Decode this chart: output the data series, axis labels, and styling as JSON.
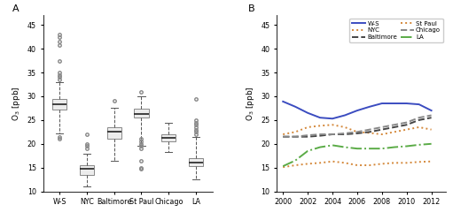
{
  "box_labels": [
    "W-S",
    "NYC",
    "Baltimore",
    "St Paul",
    "Chicago",
    "LA"
  ],
  "box_data": {
    "W-S": {
      "median": 28.3,
      "q1": 27.2,
      "q3": 29.5,
      "whislo": 22.2,
      "whishi": 33.0,
      "fliers": [
        21.5,
        21.0,
        33.5,
        34.0,
        34.5,
        35.0,
        37.5,
        40.8,
        41.5,
        42.5,
        43.0
      ]
    },
    "NYC": {
      "median": 14.8,
      "q1": 13.5,
      "q3": 15.5,
      "whislo": 11.0,
      "whishi": 18.0,
      "fliers": [
        19.0,
        19.5,
        20.0,
        22.0
      ]
    },
    "Baltimore": {
      "median": 22.5,
      "q1": 21.0,
      "q3": 23.5,
      "whislo": 16.5,
      "whishi": 27.5,
      "fliers": [
        29.0
      ]
    },
    "St Paul": {
      "median": 26.3,
      "q1": 25.5,
      "q3": 27.3,
      "whislo": 19.5,
      "whishi": 30.0,
      "fliers": [
        14.8,
        15.0,
        16.5,
        19.0,
        19.5,
        20.0,
        20.5,
        21.0,
        31.0
      ]
    },
    "Chicago": {
      "median": 21.3,
      "q1": 20.5,
      "q3": 22.0,
      "whislo": 18.2,
      "whishi": 24.5,
      "fliers": []
    },
    "LA": {
      "median": 16.0,
      "q1": 15.3,
      "q3": 17.0,
      "whislo": 12.5,
      "whishi": 21.5,
      "fliers": [
        22.0,
        22.5,
        23.0,
        23.5,
        24.0,
        24.5,
        25.0,
        29.5
      ]
    }
  },
  "line_years": [
    2000,
    2001,
    2002,
    2003,
    2004,
    2005,
    2006,
    2007,
    2008,
    2009,
    2010,
    2011,
    2012
  ],
  "line_data": {
    "W-S": [
      28.9,
      27.8,
      26.5,
      25.5,
      25.3,
      26.0,
      27.0,
      27.8,
      28.5,
      28.5,
      28.5,
      28.3,
      27.0
    ],
    "NYC": [
      22.0,
      22.5,
      23.5,
      23.8,
      24.0,
      23.5,
      22.5,
      22.3,
      22.0,
      22.5,
      23.0,
      23.5,
      23.0
    ],
    "Baltimore": [
      21.5,
      21.5,
      21.5,
      21.7,
      22.0,
      22.0,
      22.2,
      22.5,
      23.0,
      23.5,
      24.0,
      25.0,
      25.5
    ],
    "St Paul": [
      15.1,
      15.5,
      15.8,
      16.0,
      16.3,
      16.0,
      15.5,
      15.5,
      15.8,
      16.0,
      16.0,
      16.2,
      16.3
    ],
    "Chicago": [
      21.5,
      21.5,
      21.8,
      22.0,
      22.0,
      22.2,
      22.5,
      23.0,
      23.5,
      24.0,
      24.5,
      25.5,
      26.0
    ],
    "LA": [
      15.3,
      16.5,
      18.5,
      19.3,
      19.7,
      19.3,
      19.0,
      19.0,
      19.0,
      19.3,
      19.5,
      19.8,
      20.0
    ]
  },
  "line_styles": {
    "W-S": {
      "color": "#3b4cc0",
      "linestyle": "-",
      "linewidth": 1.4
    },
    "NYC": {
      "color": "#d4883a",
      "linestyle": ":",
      "linewidth": 1.4
    },
    "Baltimore": {
      "color": "#444444",
      "linestyle": "--",
      "linewidth": 1.4
    },
    "St Paul": {
      "color": "#d4883a",
      "linestyle": ":",
      "linewidth": 1.4
    },
    "Chicago": {
      "color": "#888888",
      "linestyle": "--",
      "linewidth": 1.4
    },
    "LA": {
      "color": "#5aab46",
      "linestyle": "-.",
      "linewidth": 1.4
    }
  },
  "ylim": [
    10,
    47
  ],
  "yticks": [
    10,
    15,
    20,
    25,
    30,
    35,
    40,
    45
  ],
  "ylabel": "O$_3$ [ppb]",
  "panel_a_label": "A",
  "panel_b_label": "B",
  "box_facecolor": "#ececec",
  "median_color": "#222222",
  "whisker_color": "#555555",
  "cap_color": "#555555",
  "flier_edge_color": "#888888",
  "box_edge_color": "#888888"
}
